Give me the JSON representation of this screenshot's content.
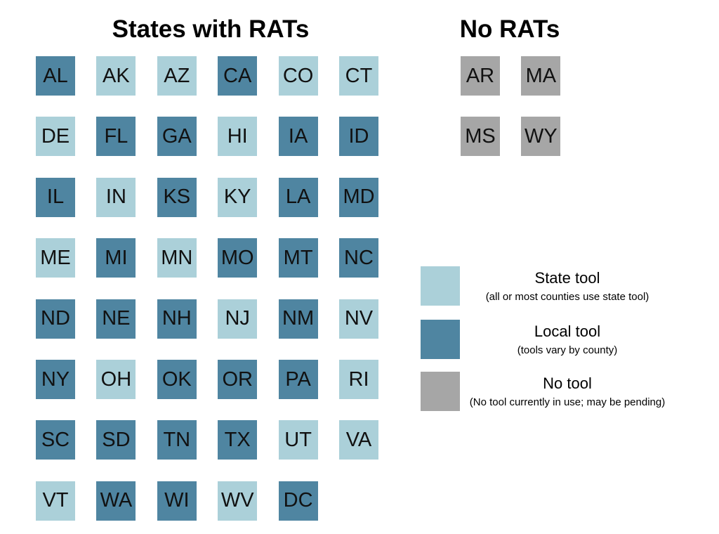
{
  "with_rats": {
    "title": "States with RATs",
    "states": [
      {
        "label": "AL",
        "color": "#4f85a1"
      },
      {
        "label": "AK",
        "color": "#abd0d9"
      },
      {
        "label": "AZ",
        "color": "#abd0d9"
      },
      {
        "label": "CA",
        "color": "#4f85a1"
      },
      {
        "label": "CO",
        "color": "#abd0d9"
      },
      {
        "label": "CT",
        "color": "#abd0d9"
      },
      {
        "label": "DE",
        "color": "#abd0d9"
      },
      {
        "label": "FL",
        "color": "#4f85a1"
      },
      {
        "label": "GA",
        "color": "#4f85a1"
      },
      {
        "label": "HI",
        "color": "#abd0d9"
      },
      {
        "label": "IA",
        "color": "#4f85a1"
      },
      {
        "label": "ID",
        "color": "#4f85a1"
      },
      {
        "label": "IL",
        "color": "#4f85a1"
      },
      {
        "label": "IN",
        "color": "#abd0d9"
      },
      {
        "label": "KS",
        "color": "#4f85a1"
      },
      {
        "label": "KY",
        "color": "#abd0d9"
      },
      {
        "label": "LA",
        "color": "#4f85a1"
      },
      {
        "label": "MD",
        "color": "#4f85a1"
      },
      {
        "label": "ME",
        "color": "#abd0d9"
      },
      {
        "label": "MI",
        "color": "#4f85a1"
      },
      {
        "label": "MN",
        "color": "#abd0d9"
      },
      {
        "label": "MO",
        "color": "#4f85a1"
      },
      {
        "label": "MT",
        "color": "#4f85a1"
      },
      {
        "label": "NC",
        "color": "#4f85a1"
      },
      {
        "label": "ND",
        "color": "#4f85a1"
      },
      {
        "label": "NE",
        "color": "#4f85a1"
      },
      {
        "label": "NH",
        "color": "#4f85a1"
      },
      {
        "label": "NJ",
        "color": "#abd0d9"
      },
      {
        "label": "NM",
        "color": "#4f85a1"
      },
      {
        "label": "NV",
        "color": "#abd0d9"
      },
      {
        "label": "NY",
        "color": "#4f85a1"
      },
      {
        "label": "OH",
        "color": "#abd0d9"
      },
      {
        "label": "OK",
        "color": "#4f85a1"
      },
      {
        "label": "OR",
        "color": "#4f85a1"
      },
      {
        "label": "PA",
        "color": "#4f85a1"
      },
      {
        "label": "RI",
        "color": "#abd0d9"
      },
      {
        "label": "SC",
        "color": "#4f85a1"
      },
      {
        "label": "SD",
        "color": "#4f85a1"
      },
      {
        "label": "TN",
        "color": "#4f85a1"
      },
      {
        "label": "TX",
        "color": "#4f85a1"
      },
      {
        "label": "UT",
        "color": "#abd0d9"
      },
      {
        "label": "VA",
        "color": "#abd0d9"
      },
      {
        "label": "VT",
        "color": "#abd0d9"
      },
      {
        "label": "WA",
        "color": "#4f85a1"
      },
      {
        "label": "WI",
        "color": "#4f85a1"
      },
      {
        "label": "WV",
        "color": "#abd0d9"
      },
      {
        "label": "DC",
        "color": "#4f85a1"
      }
    ]
  },
  "no_rats": {
    "title": "No RATs",
    "states": [
      {
        "label": "AR",
        "color": "#a6a6a6"
      },
      {
        "label": "MA",
        "color": "#a6a6a6"
      },
      {
        "label": "MS",
        "color": "#a6a6a6"
      },
      {
        "label": "WY",
        "color": "#a6a6a6"
      }
    ]
  },
  "legend": [
    {
      "color": "#abd0d9",
      "label": "State tool",
      "note": "(all or most counties use state tool)"
    },
    {
      "color": "#4f85a1",
      "label": "Local tool",
      "note": "(tools vary by county)"
    },
    {
      "color": "#a6a6a6",
      "label": "No tool",
      "note": "(No tool currently in use; may be pending)"
    }
  ]
}
